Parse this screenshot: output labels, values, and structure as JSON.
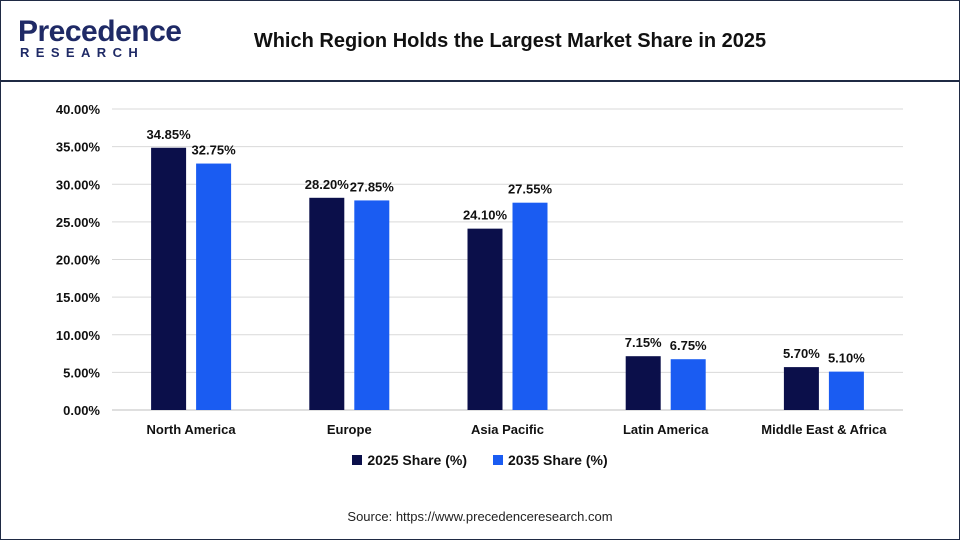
{
  "header": {
    "logo_main": "Precedence",
    "logo_sub": "RESEARCH",
    "title": "Which Region Holds the Largest Market Share in 2025"
  },
  "colors": {
    "series_2025": "#0b0f4a",
    "series_2035": "#1a5cf2",
    "brand": "#1f2a66",
    "grid": "#d9d9d9"
  },
  "chart_data": {
    "type": "bar",
    "categories": [
      "North America",
      "Europe",
      "Asia Pacific",
      "Latin America",
      "Middle East & Africa"
    ],
    "series": [
      {
        "name": "2025 Share (%)",
        "values": [
          34.85,
          28.2,
          24.1,
          7.15,
          5.7
        ],
        "labels": [
          "34.85%",
          "28.20%",
          "24.10%",
          "7.15%",
          "5.70%"
        ]
      },
      {
        "name": "2035 Share (%)",
        "values": [
          32.75,
          27.85,
          27.55,
          6.75,
          5.1
        ],
        "labels": [
          "32.75%",
          "27.85%",
          "27.55%",
          "6.75%",
          "5.10%"
        ]
      }
    ],
    "yticks": [
      "0.00%",
      "5.00%",
      "10.00%",
      "15.00%",
      "20.00%",
      "25.00%",
      "30.00%",
      "35.00%",
      "40.00%"
    ],
    "ylim": [
      0,
      40
    ],
    "grid": true,
    "legend_position": "bottom-center"
  },
  "source": "Source: https://www.precedenceresearch.com"
}
